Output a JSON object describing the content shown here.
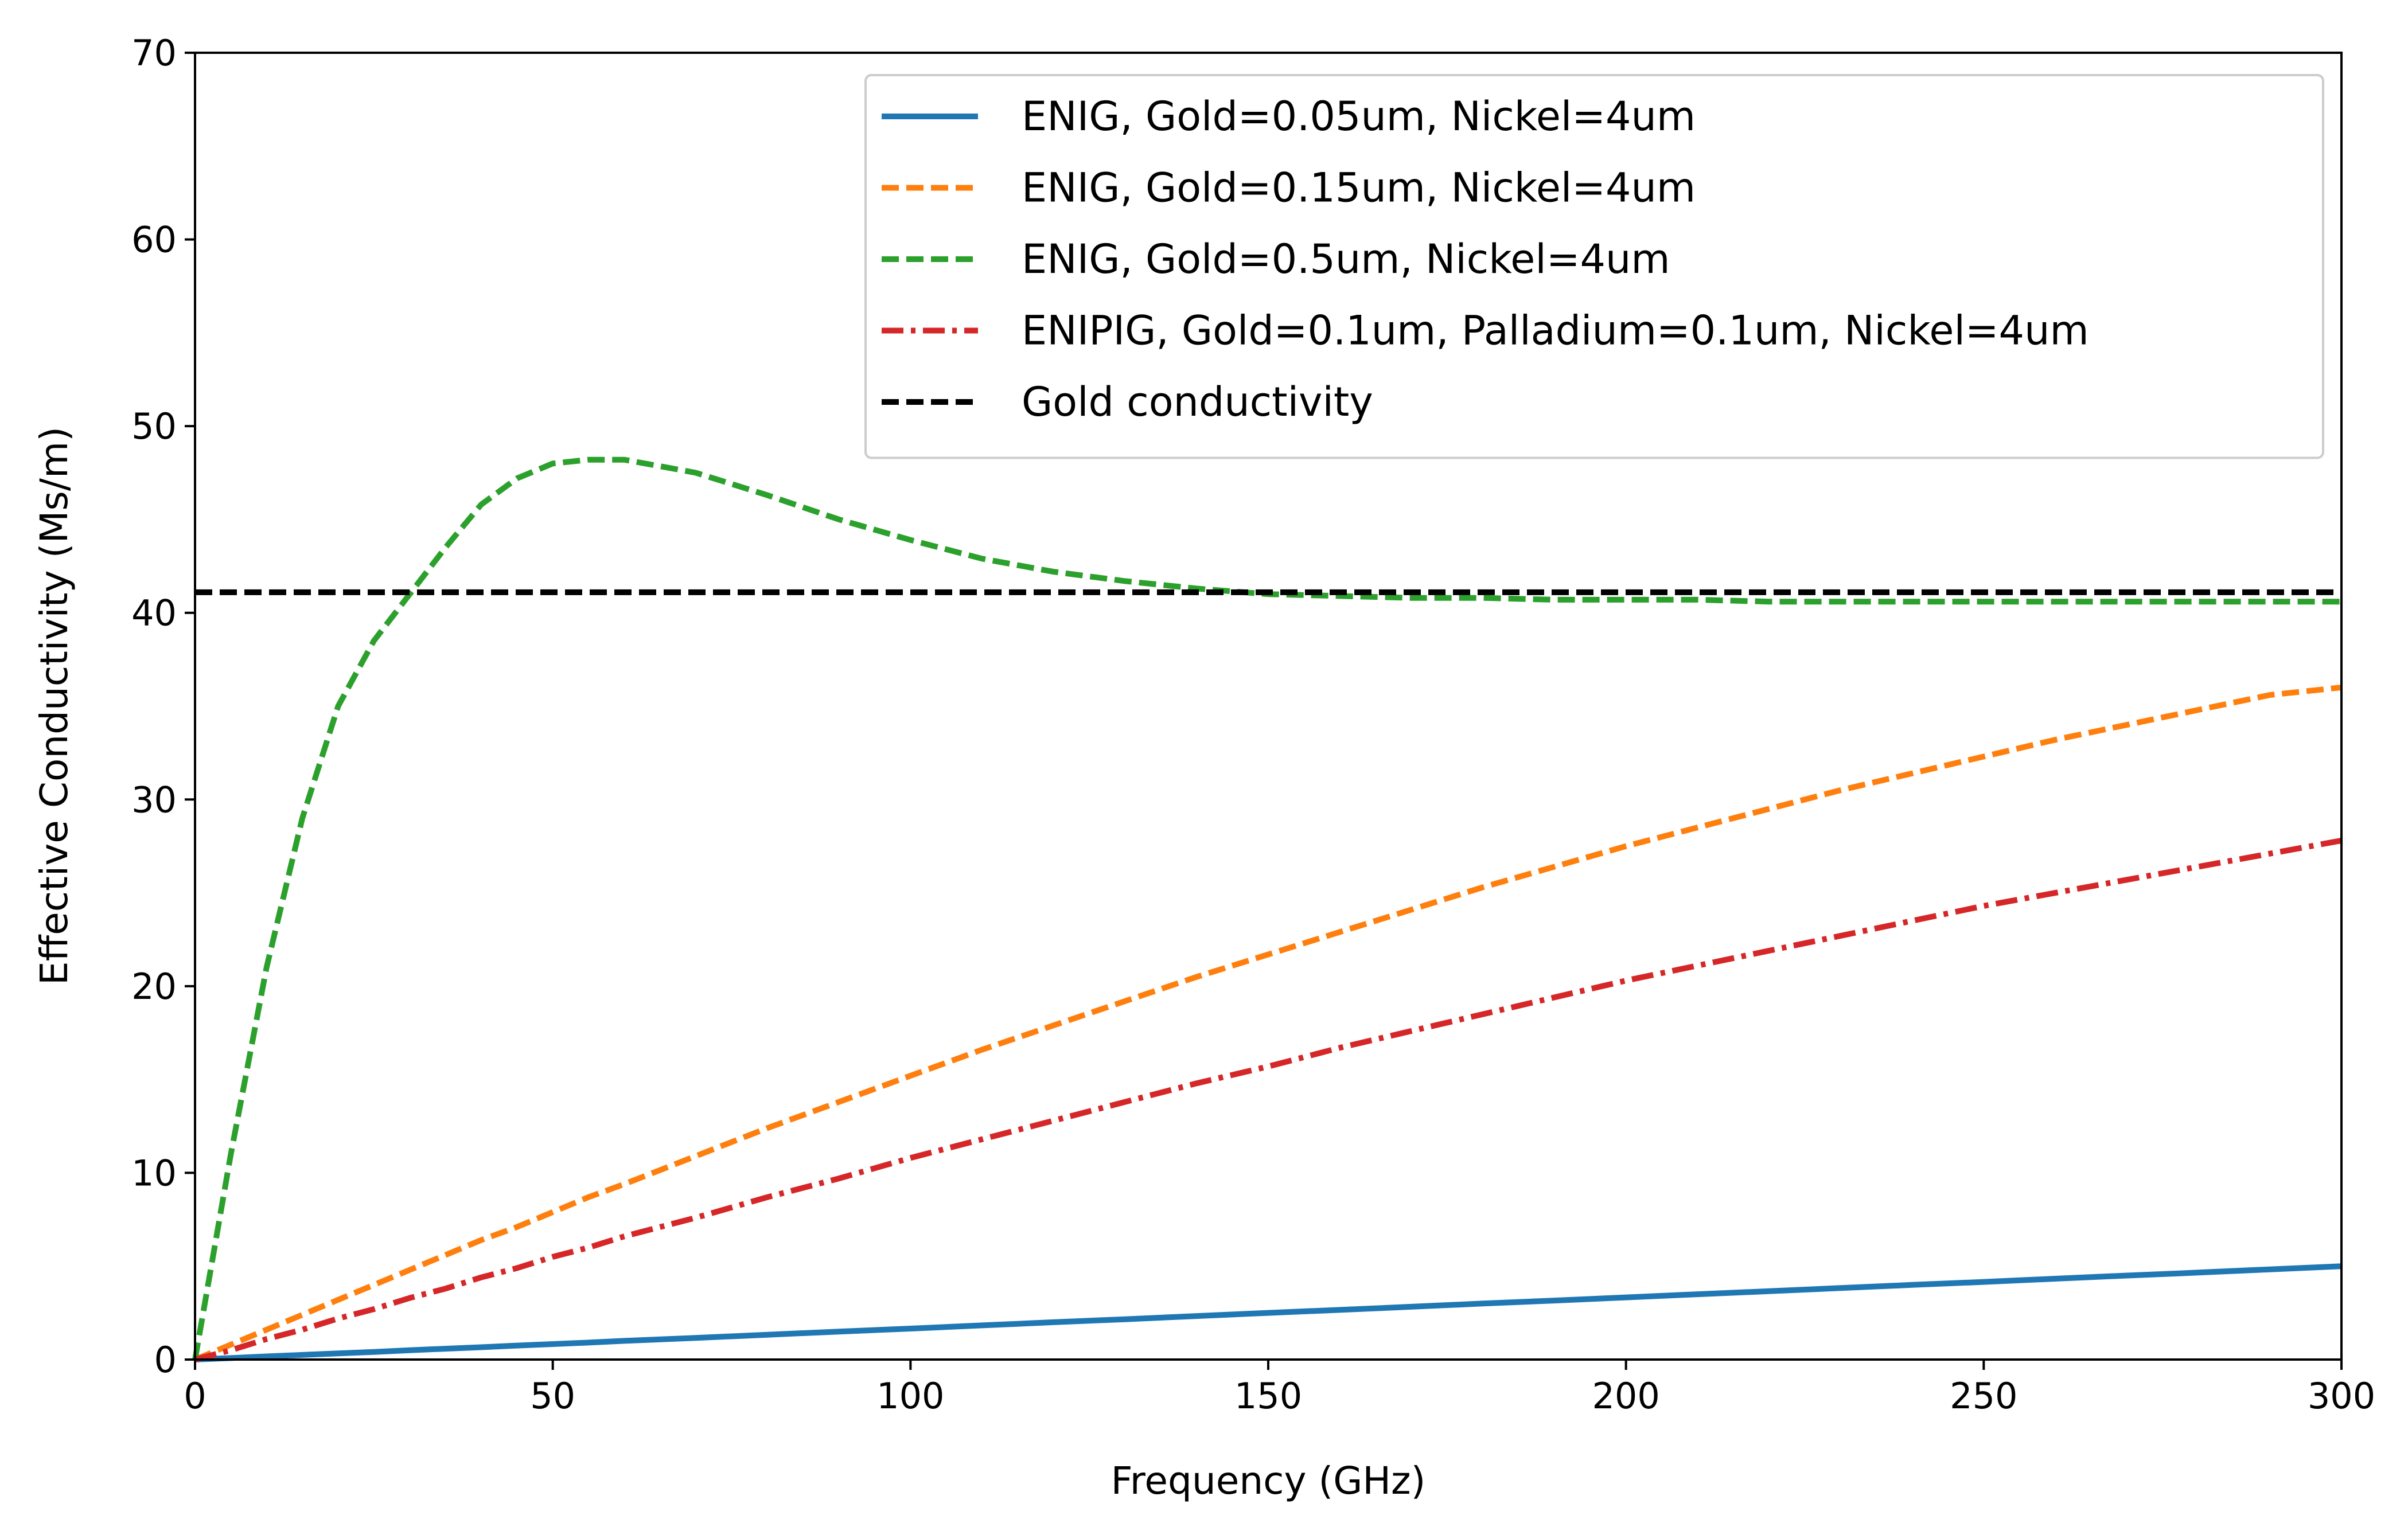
{
  "chart_data": {
    "type": "line",
    "xlabel": "Frequency (GHz)",
    "ylabel": "Effective Conductivity (Ms/m)",
    "xlim": [
      0,
      300
    ],
    "ylim": [
      0,
      70
    ],
    "xticks": [
      0,
      50,
      100,
      150,
      200,
      250,
      300
    ],
    "yticks": [
      0,
      10,
      20,
      30,
      40,
      50,
      60,
      70
    ],
    "grid": false,
    "legend_position": "top-right",
    "x": [
      0,
      5,
      10,
      15,
      20,
      25,
      30,
      35,
      40,
      45,
      50,
      55,
      60,
      70,
      80,
      90,
      100,
      110,
      120,
      130,
      140,
      150,
      160,
      170,
      180,
      190,
      200,
      210,
      220,
      230,
      240,
      250,
      260,
      270,
      280,
      290,
      300
    ],
    "series": [
      {
        "name": "ENIG, Gold=0.05um, Nickel=4um",
        "color": "#1f77b4",
        "style": "solid",
        "values": [
          0,
          0.08,
          0.17,
          0.25,
          0.33,
          0.41,
          0.5,
          0.58,
          0.66,
          0.75,
          0.83,
          0.91,
          1.0,
          1.16,
          1.33,
          1.5,
          1.66,
          1.83,
          2.0,
          2.16,
          2.33,
          2.5,
          2.66,
          2.83,
          3.0,
          3.16,
          3.33,
          3.5,
          3.66,
          3.83,
          4.0,
          4.16,
          4.33,
          4.5,
          4.66,
          4.83,
          5.0
        ]
      },
      {
        "name": "ENIG, Gold=0.15um, Nickel=4um",
        "color": "#ff7f0e",
        "style": "dashed",
        "values": [
          0,
          0.8,
          1.6,
          2.4,
          3.2,
          4.0,
          4.8,
          5.6,
          6.4,
          7.1,
          7.9,
          8.7,
          9.4,
          10.9,
          12.4,
          13.8,
          15.2,
          16.6,
          17.9,
          19.2,
          20.5,
          21.7,
          22.9,
          24.1,
          25.3,
          26.4,
          27.5,
          28.5,
          29.5,
          30.5,
          31.4,
          32.3,
          33.2,
          34.0,
          34.8,
          35.6,
          36.0
        ]
      },
      {
        "name": "ENIG, Gold=0.5um, Nickel=4um",
        "color": "#2ca02c",
        "style": "dashed",
        "values": [
          0,
          11.0,
          21.0,
          29.0,
          35.0,
          38.5,
          41.0,
          43.5,
          45.8,
          47.2,
          48.0,
          48.2,
          48.2,
          47.5,
          46.3,
          45.0,
          43.9,
          42.9,
          42.2,
          41.7,
          41.3,
          41.0,
          40.9,
          40.8,
          40.8,
          40.7,
          40.7,
          40.7,
          40.6,
          40.6,
          40.6,
          40.6,
          40.6,
          40.6,
          40.6,
          40.6,
          40.6
        ]
      },
      {
        "name": "ENIPIG, Gold=0.1um, Palladium=0.1um, Nickel=4um",
        "color": "#d62728",
        "style": "dashdot",
        "values": [
          0,
          0.5,
          1.1,
          1.6,
          2.2,
          2.7,
          3.3,
          3.8,
          4.4,
          4.9,
          5.5,
          6.0,
          6.6,
          7.6,
          8.7,
          9.7,
          10.8,
          11.8,
          12.8,
          13.8,
          14.8,
          15.7,
          16.7,
          17.6,
          18.5,
          19.4,
          20.3,
          21.1,
          21.9,
          22.7,
          23.5,
          24.3,
          25.0,
          25.7,
          26.4,
          27.1,
          27.8
        ]
      },
      {
        "name": "Gold conductivity",
        "color": "#000000",
        "style": "dashed",
        "constant": 41.1
      }
    ]
  }
}
